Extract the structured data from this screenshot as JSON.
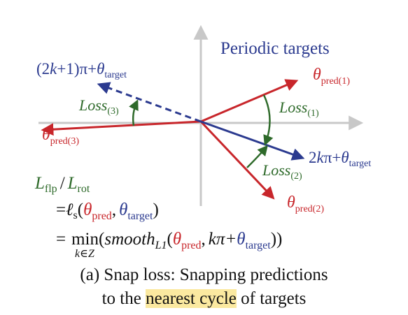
{
  "title": "Periodic targets",
  "labels": {
    "flip_target": {
      "pre": "(2",
      "k": "k",
      "mid": "+1)π+",
      "theta": "θ",
      "sub": "target"
    },
    "loss3": {
      "name": "Loss",
      "sub": "(3)"
    },
    "pred3": {
      "theta": "θ",
      "sub": "pred(3)"
    },
    "pred1": {
      "theta": "θ",
      "sub": "pred(1)"
    },
    "loss1": {
      "name": "Loss",
      "sub": "(1)"
    },
    "target": {
      "k": "k",
      "pi": "π+",
      "theta": "θ",
      "sub": "target",
      "pre": "2"
    },
    "loss2": {
      "name": "Loss",
      "sub": "(2)"
    },
    "pred2": {
      "theta": "θ",
      "sub": "pred(2)"
    }
  },
  "formula": {
    "lhs": {
      "L1": "L",
      "sub1": "flp",
      "slash": "/",
      "L2": "L",
      "sub2": "rot"
    },
    "line2": {
      "eq": "=",
      "ell": "ℓ",
      "ssub": "s",
      "open": "(",
      "theta1": "θ",
      "sub1": "pred",
      "comma": ",",
      "theta2": "θ",
      "sub2": "target",
      "close": ")"
    },
    "line3": {
      "eq": "=",
      "min": "min",
      "under": "k∈Z",
      "open": "(",
      "smooth": "smooth",
      "l1": "L1",
      "open2": "(",
      "theta1": "θ",
      "sub1": "pred",
      "comma": ",",
      "kpi": "kπ+",
      "theta2": "θ",
      "sub2": "target",
      "close": "))"
    }
  },
  "caption": {
    "line1": "(a) Snap loss: Snapping predictions",
    "line2_pre": "to the ",
    "line2_highlight": "nearest cycle",
    "line2_post": " of targets"
  },
  "colors": {
    "blue": "#2b3a8f",
    "red": "#c8262b",
    "green": "#2e6a2a",
    "axis": "#c8c8c8",
    "highlight": "#fbe9a0"
  }
}
